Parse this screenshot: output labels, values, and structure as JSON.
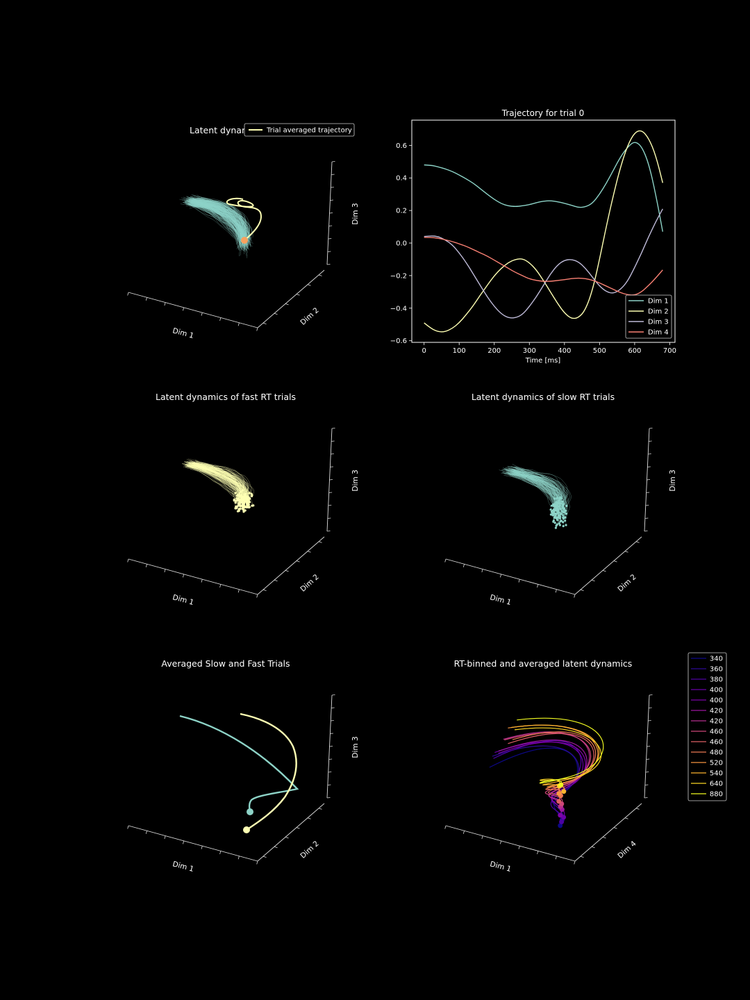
{
  "colors": {
    "background": "#000000",
    "dim1": "#8dd3c7",
    "dim2": "#feffb3",
    "dim3": "#bfbbd9",
    "dim4": "#fa8174",
    "fast": "#feffb3",
    "slow": "#8dd3c7",
    "start_marker": "#f9a15e"
  },
  "chart_data": [
    {
      "id": "latent",
      "type": "line3d",
      "title": "Latent dynamics",
      "axis_labels": [
        "Dim 1",
        "Dim 2",
        "Dim 3"
      ],
      "legend": [
        "Trial averaged trajectory"
      ],
      "legend_position": "top-right",
      "trial_color": "#8dd3c7",
      "average_color": "#feffb3"
    },
    {
      "id": "trial0",
      "type": "line",
      "title": "Trajectory for trial 0",
      "xlabel": "Time [ms]",
      "ylabel": "",
      "xlim": [
        -35,
        715
      ],
      "ylim": [
        -0.61,
        0.755
      ],
      "xticks": [
        0,
        100,
        200,
        300,
        400,
        500,
        600,
        700
      ],
      "yticks": [
        -0.6,
        -0.4,
        -0.2,
        0.0,
        0.2,
        0.4,
        0.6
      ],
      "ytick_labels": [
        "−0.6",
        "−0.4",
        "−0.2",
        "0.0",
        "0.2",
        "0.4",
        "0.6"
      ],
      "legend_position": "lower-right",
      "grid": false,
      "x": [
        0,
        20,
        40,
        60,
        80,
        100,
        120,
        140,
        160,
        180,
        200,
        220,
        240,
        260,
        280,
        300,
        320,
        340,
        360,
        380,
        400,
        420,
        440,
        460,
        480,
        500,
        520,
        540,
        560,
        580,
        600,
        620,
        640,
        660,
        680
      ],
      "series": [
        {
          "name": "Dim 1",
          "color": "#8dd3c7",
          "values": [
            0.48,
            0.478,
            0.468,
            0.456,
            0.44,
            0.418,
            0.394,
            0.368,
            0.334,
            0.3,
            0.268,
            0.242,
            0.228,
            0.224,
            0.228,
            0.236,
            0.248,
            0.258,
            0.26,
            0.254,
            0.244,
            0.232,
            0.218,
            0.222,
            0.244,
            0.3,
            0.37,
            0.45,
            0.53,
            0.59,
            0.626,
            0.595,
            0.49,
            0.3,
            0.07
          ]
        },
        {
          "name": "Dim 2",
          "color": "#feffb3",
          "values": [
            -0.49,
            -0.525,
            -0.545,
            -0.545,
            -0.525,
            -0.49,
            -0.44,
            -0.385,
            -0.32,
            -0.26,
            -0.2,
            -0.155,
            -0.12,
            -0.1,
            -0.095,
            -0.12,
            -0.165,
            -0.23,
            -0.3,
            -0.37,
            -0.43,
            -0.465,
            -0.46,
            -0.41,
            -0.29,
            -0.1,
            0.11,
            0.3,
            0.47,
            0.6,
            0.68,
            0.695,
            0.645,
            0.54,
            0.37
          ]
        },
        {
          "name": "Dim 3",
          "color": "#bfbbd9",
          "values": [
            0.04,
            0.045,
            0.04,
            0.02,
            -0.01,
            -0.06,
            -0.12,
            -0.19,
            -0.26,
            -0.33,
            -0.39,
            -0.435,
            -0.46,
            -0.46,
            -0.44,
            -0.39,
            -0.33,
            -0.26,
            -0.19,
            -0.135,
            -0.105,
            -0.1,
            -0.115,
            -0.155,
            -0.21,
            -0.265,
            -0.3,
            -0.31,
            -0.285,
            -0.235,
            -0.15,
            -0.06,
            0.04,
            0.13,
            0.21
          ]
        },
        {
          "name": "Dim 4",
          "color": "#fa8174",
          "values": [
            0.035,
            0.035,
            0.03,
            0.02,
            0.01,
            -0.005,
            -0.02,
            -0.04,
            -0.06,
            -0.08,
            -0.105,
            -0.13,
            -0.155,
            -0.18,
            -0.2,
            -0.22,
            -0.23,
            -0.235,
            -0.235,
            -0.23,
            -0.225,
            -0.218,
            -0.215,
            -0.218,
            -0.228,
            -0.245,
            -0.265,
            -0.285,
            -0.305,
            -0.318,
            -0.32,
            -0.3,
            -0.26,
            -0.215,
            -0.165
          ]
        }
      ]
    },
    {
      "id": "fast",
      "type": "line3d",
      "title": "Latent dynamics of fast RT trials",
      "axis_labels": [
        "Dim 1",
        "Dim 2",
        "Dim 3"
      ],
      "trial_color": "#feffb3"
    },
    {
      "id": "slow",
      "type": "line3d",
      "title": "Latent dynamics of slow RT trials",
      "axis_labels": [
        "Dim 1",
        "Dim 2",
        "Dim 3"
      ],
      "trial_color": "#8dd3c7"
    },
    {
      "id": "averaged",
      "type": "line3d",
      "title": "Averaged Slow and Fast Trials",
      "axis_labels": [
        "Dim 1",
        "Dim 2",
        "Dim 3"
      ],
      "series": [
        {
          "color": "#8dd3c7"
        },
        {
          "color": "#feffb3"
        }
      ]
    },
    {
      "id": "rtbinned",
      "type": "line3d",
      "title": "RT-binned and averaged latent dynamics",
      "axis_labels": [
        "Dim 1",
        "Dim 4",
        ""
      ],
      "legend": [
        "340",
        "360",
        "380",
        "400",
        "400",
        "420",
        "420",
        "460",
        "460",
        "480",
        "520",
        "540",
        "640",
        "880"
      ],
      "legend_colors": [
        "#0d0887",
        "#2d0b92",
        "#4c02a1",
        "#6a00a8",
        "#7e03a8",
        "#9c179e",
        "#b52f8c",
        "#cc4778",
        "#de5f65",
        "#ed7953",
        "#f89540",
        "#fdb42f",
        "#fbd524",
        "#f0f921"
      ],
      "legend_position": "right"
    }
  ]
}
